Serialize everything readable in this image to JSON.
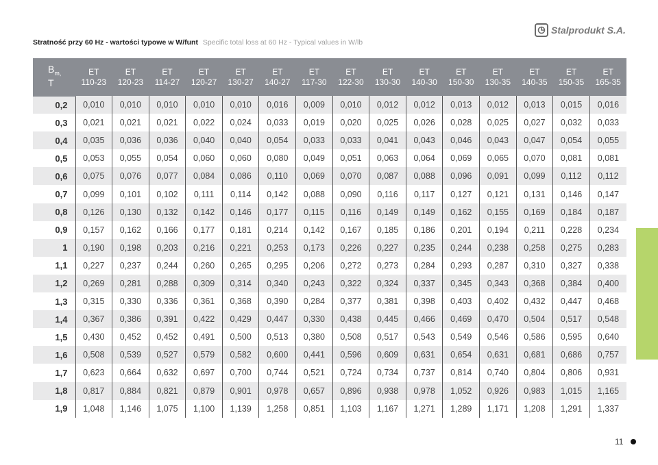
{
  "header": {
    "title_pl": "Stratność przy 60 Hz - wartości typowe w W/funt",
    "title_en": "Specific total loss at 60 Hz - Typical values in W/lb",
    "brand": "Stalprodukt S.A."
  },
  "table": {
    "corner_line1": "B",
    "corner_sub": "m,",
    "corner_line2": "T",
    "columns": [
      {
        "grade": "ET",
        "type": "110-23"
      },
      {
        "grade": "ET",
        "type": "120-23"
      },
      {
        "grade": "ET",
        "type": "114-27"
      },
      {
        "grade": "ET",
        "type": "120-27"
      },
      {
        "grade": "ET",
        "type": "130-27"
      },
      {
        "grade": "ET",
        "type": "140-27"
      },
      {
        "grade": "ET",
        "type": "117-30"
      },
      {
        "grade": "ET",
        "type": "122-30"
      },
      {
        "grade": "ET",
        "type": "130-30"
      },
      {
        "grade": "ET",
        "type": "140-30"
      },
      {
        "grade": "ET",
        "type": "150-30"
      },
      {
        "grade": "ET",
        "type": "130-35"
      },
      {
        "grade": "ET",
        "type": "140-35"
      },
      {
        "grade": "ET",
        "type": "150-35"
      },
      {
        "grade": "ET",
        "type": "165-35"
      }
    ],
    "rows": [
      {
        "b": "0,2",
        "values": [
          "0,010",
          "0,010",
          "0,010",
          "0,010",
          "0,010",
          "0,016",
          "0,009",
          "0,010",
          "0,012",
          "0,012",
          "0,013",
          "0,012",
          "0,013",
          "0,015",
          "0,016"
        ]
      },
      {
        "b": "0,3",
        "values": [
          "0,021",
          "0,021",
          "0,021",
          "0,022",
          "0,024",
          "0,033",
          "0,019",
          "0,020",
          "0,025",
          "0,026",
          "0,028",
          "0,025",
          "0,027",
          "0,032",
          "0,033"
        ]
      },
      {
        "b": "0,4",
        "values": [
          "0,035",
          "0,036",
          "0,036",
          "0,040",
          "0,040",
          "0,054",
          "0,033",
          "0,033",
          "0,041",
          "0,043",
          "0,046",
          "0,043",
          "0,047",
          "0,054",
          "0,055"
        ]
      },
      {
        "b": "0,5",
        "values": [
          "0,053",
          "0,055",
          "0,054",
          "0,060",
          "0,060",
          "0,080",
          "0,049",
          "0,051",
          "0,063",
          "0,064",
          "0,069",
          "0,065",
          "0,070",
          "0,081",
          "0,081"
        ]
      },
      {
        "b": "0,6",
        "values": [
          "0,075",
          "0,076",
          "0,077",
          "0,084",
          "0,086",
          "0,110",
          "0,069",
          "0,070",
          "0,087",
          "0,088",
          "0,096",
          "0,091",
          "0,099",
          "0,112",
          "0,112"
        ]
      },
      {
        "b": "0,7",
        "values": [
          "0,099",
          "0,101",
          "0,102",
          "0,111",
          "0,114",
          "0,142",
          "0,088",
          "0,090",
          "0,116",
          "0,117",
          "0,127",
          "0,121",
          "0,131",
          "0,146",
          "0,147"
        ]
      },
      {
        "b": "0,8",
        "values": [
          "0,126",
          "0,130",
          "0,132",
          "0,142",
          "0,146",
          "0,177",
          "0,115",
          "0,116",
          "0,149",
          "0,149",
          "0,162",
          "0,155",
          "0,169",
          "0,184",
          "0,187"
        ]
      },
      {
        "b": "0,9",
        "values": [
          "0,157",
          "0,162",
          "0,166",
          "0,177",
          "0,181",
          "0,214",
          "0,142",
          "0,167",
          "0,185",
          "0,186",
          "0,201",
          "0,194",
          "0,211",
          "0,228",
          "0,234"
        ]
      },
      {
        "b": "1",
        "values": [
          "0,190",
          "0,198",
          "0,203",
          "0,216",
          "0,221",
          "0,253",
          "0,173",
          "0,226",
          "0,227",
          "0,235",
          "0,244",
          "0,238",
          "0,258",
          "0,275",
          "0,283"
        ]
      },
      {
        "b": "1,1",
        "values": [
          "0,227",
          "0,237",
          "0,244",
          "0,260",
          "0,265",
          "0,295",
          "0,206",
          "0,272",
          "0,273",
          "0,284",
          "0,293",
          "0,287",
          "0,310",
          "0,327",
          "0,338"
        ]
      },
      {
        "b": "1,2",
        "values": [
          "0,269",
          "0,281",
          "0,288",
          "0,309",
          "0,314",
          "0,340",
          "0,243",
          "0,322",
          "0,324",
          "0,337",
          "0,345",
          "0,343",
          "0,368",
          "0,384",
          "0,400"
        ]
      },
      {
        "b": "1,3",
        "values": [
          "0,315",
          "0,330",
          "0,336",
          "0,361",
          "0,368",
          "0,390",
          "0,284",
          "0,377",
          "0,381",
          "0,398",
          "0,403",
          "0,402",
          "0,432",
          "0,447",
          "0,468"
        ]
      },
      {
        "b": "1,4",
        "values": [
          "0,367",
          "0,386",
          "0,391",
          "0,422",
          "0,429",
          "0,447",
          "0,330",
          "0,438",
          "0,445",
          "0,466",
          "0,469",
          "0,470",
          "0,504",
          "0,517",
          "0,548"
        ]
      },
      {
        "b": "1,5",
        "values": [
          "0,430",
          "0,452",
          "0,452",
          "0,491",
          "0,500",
          "0,513",
          "0,380",
          "0,508",
          "0,517",
          "0,543",
          "0,549",
          "0,546",
          "0,586",
          "0,595",
          "0,640"
        ]
      },
      {
        "b": "1,6",
        "values": [
          "0,508",
          "0,539",
          "0,527",
          "0,579",
          "0,582",
          "0,600",
          "0,441",
          "0,596",
          "0,609",
          "0,631",
          "0,654",
          "0,631",
          "0,681",
          "0,686",
          "0,757"
        ]
      },
      {
        "b": "1,7",
        "values": [
          "0,623",
          "0,664",
          "0,632",
          "0,697",
          "0,700",
          "0,744",
          "0,521",
          "0,724",
          "0,734",
          "0,737",
          "0,814",
          "0,740",
          "0,804",
          "0,806",
          "0,931"
        ]
      },
      {
        "b": "1,8",
        "values": [
          "0,817",
          "0,884",
          "0,821",
          "0,879",
          "0,901",
          "0,978",
          "0,657",
          "0,896",
          "0,938",
          "0,978",
          "1,052",
          "0,926",
          "0,983",
          "1,015",
          "1,165"
        ]
      },
      {
        "b": "1,9",
        "values": [
          "1,048",
          "1,146",
          "1,075",
          "1,100",
          "1,139",
          "1,258",
          "0,851",
          "1,103",
          "1,167",
          "1,271",
          "1,289",
          "1,171",
          "1,208",
          "1,291",
          "1,337"
        ]
      }
    ]
  },
  "footer": {
    "page_number": "11"
  },
  "colors": {
    "header_bg": "#8a8d93",
    "row_shade": "#e9e9ea",
    "side_tab": "#b6d56b"
  }
}
